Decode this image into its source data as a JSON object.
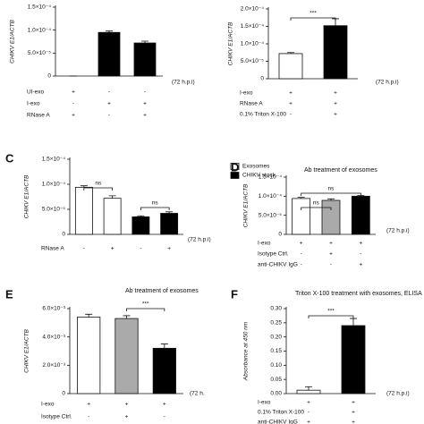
{
  "chart_data": [
    {
      "type": "bar",
      "y_label": "CHIKV E1/ACTB",
      "note": "(72 h.p.i)",
      "categories": [
        null,
        null,
        null
      ],
      "series": [
        {
          "color": "#000000",
          "values": [
            0,
            9.5e-05,
            7.2e-05
          ],
          "errors": [
            0,
            3e-06,
            4e-06
          ]
        }
      ],
      "ylim": [
        0,
        0.00015
      ],
      "yticks": [
        {
          "value": 0,
          "label": "0"
        },
        {
          "value": 5e-05,
          "label": "5.0×10⁻⁵"
        },
        {
          "value": 0.0001,
          "label": "1.0×10⁻⁴"
        },
        {
          "value": 0.00015,
          "label": "1.5×10⁻⁴"
        }
      ],
      "conditions": [
        {
          "label": "UI-exo",
          "marks": [
            "+",
            "-",
            "-"
          ]
        },
        {
          "label": "I-exo",
          "marks": [
            "-",
            "+",
            "+"
          ]
        },
        {
          "label": "RNase A",
          "marks": [
            "+",
            "-",
            "+"
          ]
        }
      ],
      "annotations": []
    },
    {
      "type": "bar",
      "y_label": "CHIKV E1/ACTB",
      "note": "(72 h.p.i)",
      "categories": [
        null,
        null
      ],
      "series": [
        {
          "color": "#ffffff",
          "values": [
            7.2e-05,
            null
          ],
          "errors": [
            3e-06,
            null
          ]
        },
        {
          "color": "#000000",
          "values": [
            null,
            0.000152
          ],
          "errors": [
            null,
            2e-05
          ]
        }
      ],
      "ylim": [
        0,
        0.0002
      ],
      "yticks": [
        {
          "value": 0,
          "label": "0"
        },
        {
          "value": 5e-05,
          "label": "5.0×10⁻⁵"
        },
        {
          "value": 0.0001,
          "label": "1.0×10⁻⁴"
        },
        {
          "value": 0.00015,
          "label": "1.5×10⁻⁴"
        },
        {
          "value": 0.0002,
          "label": "2.0×10⁻⁴"
        }
      ],
      "conditions": [
        {
          "label": "I-exo",
          "marks": [
            "+",
            "+"
          ]
        },
        {
          "label": "RNase A",
          "marks": [
            "+",
            "+"
          ]
        },
        {
          "label": "0.1% Triton X-100",
          "marks": [
            "-",
            "+"
          ]
        }
      ],
      "annotations": [
        "***"
      ]
    },
    {
      "type": "bar",
      "panel": "C",
      "y_label": "CHIKV E1/ACTB",
      "note": "(72 h.p.i)",
      "categories": [
        null,
        null,
        null,
        null
      ],
      "series": [
        {
          "name": "Exosomes",
          "color": "#ffffff",
          "values": [
            9.4e-05,
            7.2e-05,
            null,
            null
          ],
          "errors": [
            3e-06,
            5e-06,
            null,
            null
          ]
        },
        {
          "name": "CHIKV stock",
          "color": "#000000",
          "values": [
            null,
            null,
            3.5e-05,
            4.2e-05
          ],
          "errors": [
            null,
            null,
            2e-06,
            3e-06
          ]
        }
      ],
      "ylim": [
        0,
        0.00015
      ],
      "yticks": [
        {
          "value": 0,
          "label": "0"
        },
        {
          "value": 5e-05,
          "label": "5.0×10⁻⁵"
        },
        {
          "value": 0.0001,
          "label": "1.0×10⁻⁴"
        },
        {
          "value": 0.00015,
          "label": "1.5×10⁻⁴"
        }
      ],
      "conditions": [
        {
          "label": "RNase A",
          "marks": [
            "-",
            "+",
            "-",
            "+"
          ]
        }
      ],
      "annotations": [
        "ns",
        "ns"
      ]
    },
    {
      "type": "bar",
      "panel": "D",
      "title": "Ab treatment of exosomes",
      "y_label": "CHIKV E1/ACTB",
      "note": "(72 h.p.i)",
      "categories": [
        null,
        null,
        null
      ],
      "series": [
        {
          "color": "#ffffff",
          "values": [
            9.4e-05,
            null,
            null
          ],
          "errors": [
            3e-06,
            null,
            null
          ]
        },
        {
          "color": "#aaaaaa",
          "values": [
            null,
            8.9e-05,
            null
          ],
          "errors": [
            null,
            4e-06,
            null
          ]
        },
        {
          "color": "#000000",
          "values": [
            null,
            null,
            0.0001
          ],
          "errors": [
            null,
            null,
            2e-06
          ]
        }
      ],
      "ylim": [
        0,
        0.00015
      ],
      "yticks": [
        {
          "value": 0,
          "label": "0"
        },
        {
          "value": 5e-05,
          "label": "5.0×10⁻⁵"
        },
        {
          "value": 0.0001,
          "label": "1.0×10⁻⁴"
        },
        {
          "value": 0.00015,
          "label": "1.5×10⁻⁴"
        }
      ],
      "conditions": [
        {
          "label": "I-exo",
          "marks": [
            "+",
            "+",
            "+"
          ]
        },
        {
          "label": "Isotype Ctrl.",
          "marks": [
            "-",
            "+",
            "-"
          ]
        },
        {
          "label": "anti-CHIKV IgG",
          "marks": [
            "-",
            "-",
            "+"
          ]
        }
      ],
      "annotations": [
        "ns",
        "ns"
      ]
    },
    {
      "type": "bar",
      "panel": "E",
      "title": "Ab treatment of exosomes",
      "y_label": "CHIKV E1/ACTB",
      "note": "(72 h.",
      "categories": [
        null,
        null,
        null
      ],
      "series": [
        {
          "color": "#ffffff",
          "values": [
            0.0054,
            null,
            null
          ],
          "errors": [
            0.0002,
            null,
            null
          ]
        },
        {
          "color": "#aaaaaa",
          "values": [
            null,
            0.0053,
            null
          ],
          "errors": [
            null,
            0.0002,
            null
          ]
        },
        {
          "color": "#000000",
          "values": [
            null,
            null,
            0.0032
          ],
          "errors": [
            null,
            null,
            0.0003
          ]
        }
      ],
      "ylim": [
        0,
        0.006
      ],
      "yticks": [
        {
          "value": 0,
          "label": "0"
        },
        {
          "value": 0.002,
          "label": "2.0×10⁻³"
        },
        {
          "value": 0.004,
          "label": "4.0×10⁻³"
        },
        {
          "value": 0.006,
          "label": "6.0×10⁻³"
        }
      ],
      "conditions": [
        {
          "label": "I-exo",
          "marks": [
            "+",
            "+",
            "+"
          ]
        },
        {
          "label": "Isotype Ctrl.",
          "marks": [
            "-",
            "+",
            "-"
          ]
        }
      ],
      "annotations": [
        "***"
      ]
    },
    {
      "type": "bar",
      "panel": "F",
      "title": "Triton X-100 treatment with exosomes, ELISA",
      "y_label": "Absorbance at 450 nm",
      "note": "(72 h.p.i)",
      "categories": [
        null,
        null
      ],
      "series": [
        {
          "color": "#ffffff",
          "values": [
            0.012,
            null
          ],
          "errors": [
            0.012,
            null
          ]
        },
        {
          "color": "#000000",
          "values": [
            null,
            0.24
          ],
          "errors": [
            null,
            0.025
          ]
        }
      ],
      "ylim": [
        0,
        0.3
      ],
      "yticks": [
        {
          "value": 0,
          "label": "0.00"
        },
        {
          "value": 0.05,
          "label": "0.05"
        },
        {
          "value": 0.1,
          "label": "0.10"
        },
        {
          "value": 0.15,
          "label": "0.15"
        },
        {
          "value": 0.2,
          "label": "0.20"
        },
        {
          "value": 0.25,
          "label": "0.25"
        },
        {
          "value": 0.3,
          "label": "0.30"
        }
      ],
      "conditions": [
        {
          "label": "I-exo",
          "marks": [
            "+",
            "+"
          ]
        },
        {
          "label": "0.1% Triton X-100",
          "marks": [
            "-",
            "+"
          ]
        },
        {
          "label": "anti-CHIKV IgG",
          "marks": [
            "+",
            "+"
          ]
        }
      ],
      "annotations": [
        "***"
      ]
    }
  ]
}
